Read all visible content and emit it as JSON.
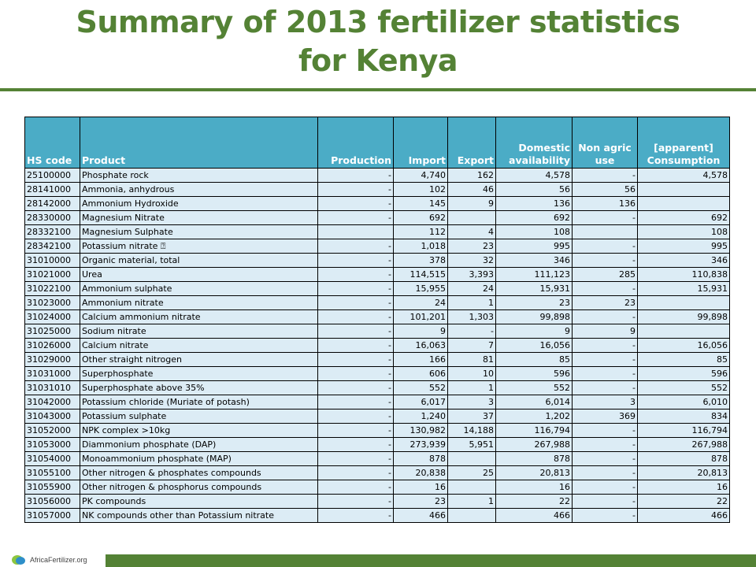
{
  "title": "Summary of 2013 fertilizer statistics for Kenya",
  "title_line1": "Summary of 2013 fertilizer statistics",
  "title_line2": "for Kenya",
  "logo_text": "AfricaFertilizer.org",
  "colors": {
    "header": "#4bacc6",
    "row": "#dcecf5",
    "accent": "#548235"
  },
  "table": {
    "headers": [
      "HS code",
      "Product",
      "Production",
      "Import",
      "Export",
      "Domestic availability",
      "Non agric use",
      "[apparent] Consumption"
    ],
    "rows": [
      [
        "25100000",
        "Phosphate rock",
        "-",
        "4,740",
        "162",
        "4,578",
        "-",
        "4,578"
      ],
      [
        "28141000",
        "Ammonia, anhydrous",
        "-",
        "102",
        "46",
        "56",
        "56",
        ""
      ],
      [
        "28142000",
        "Ammonium Hydroxide",
        "-",
        "145",
        "9",
        "136",
        "136",
        ""
      ],
      [
        "28330000",
        "Magnesium Nitrate",
        "-",
        "692",
        "",
        "692",
        "-",
        "692"
      ],
      [
        "28332100",
        "Magnesium Sulphate",
        "",
        "112",
        "4",
        "108",
        "",
        "108"
      ],
      [
        "28342100",
        "Potassium nitrate ⍰",
        "-",
        "1,018",
        "23",
        "995",
        "-",
        "995"
      ],
      [
        "31010000",
        "Organic material, total",
        "-",
        "378",
        "32",
        "346",
        "-",
        "346"
      ],
      [
        "31021000",
        "Urea",
        "-",
        "114,515",
        "3,393",
        "111,123",
        "285",
        "110,838"
      ],
      [
        "31022100",
        "Ammonium sulphate",
        "-",
        "15,955",
        "24",
        "15,931",
        "-",
        "15,931"
      ],
      [
        "31023000",
        "Ammonium nitrate",
        "-",
        "24",
        "1",
        "23",
        "23",
        ""
      ],
      [
        "31024000",
        "Calcium ammonium nitrate",
        "-",
        "101,201",
        "1,303",
        "99,898",
        "-",
        "99,898"
      ],
      [
        "31025000",
        "Sodium nitrate",
        "-",
        "9",
        "-",
        "9",
        "9",
        ""
      ],
      [
        "31026000",
        "Calcium nitrate",
        "-",
        "16,063",
        "7",
        "16,056",
        "-",
        "16,056"
      ],
      [
        "31029000",
        "Other straight nitrogen",
        "-",
        "166",
        "81",
        "85",
        "-",
        "85"
      ],
      [
        "31031000",
        "Superphosphate",
        "-",
        "606",
        "10",
        "596",
        "-",
        "596"
      ],
      [
        "31031010",
        "Superphosphate above 35%",
        "-",
        "552",
        "1",
        "552",
        "-",
        "552"
      ],
      [
        "31042000",
        "Potassium chloride (Muriate of potash)",
        "-",
        "6,017",
        "3",
        "6,014",
        "3",
        "6,010"
      ],
      [
        "31043000",
        "Potassium sulphate",
        "-",
        "1,240",
        "37",
        "1,202",
        "369",
        "834"
      ],
      [
        "31052000",
        "NPK complex >10kg",
        "-",
        "130,982",
        "14,188",
        "116,794",
        "-",
        "116,794"
      ],
      [
        "31053000",
        "Diammonium phosphate (DAP)",
        "-",
        "273,939",
        "5,951",
        "267,988",
        "-",
        "267,988"
      ],
      [
        "31054000",
        "Monoammonium phosphate (MAP)",
        "-",
        "878",
        "",
        "878",
        "-",
        "878"
      ],
      [
        "31055100",
        "Other nitrogen & phosphates compounds",
        "-",
        "20,838",
        "25",
        "20,813",
        "-",
        "20,813"
      ],
      [
        "31055900",
        "Other nitrogen & phosphorus compounds",
        "-",
        "16",
        "",
        "16",
        "-",
        "16"
      ],
      [
        "31056000",
        "PK compounds",
        "-",
        "23",
        "1",
        "22",
        "-",
        "22"
      ],
      [
        "31057000",
        "NK compounds other than Potassium nitrate",
        "-",
        "466",
        "",
        "466",
        "-",
        "466"
      ]
    ]
  }
}
